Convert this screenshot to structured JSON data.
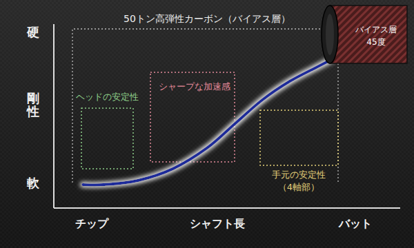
{
  "chart_data": {
    "type": "line",
    "title": "50トン高弾性カーボン（バイアス層）",
    "x_label": "シャフト長",
    "y_label": "剛性",
    "x": [
      8.4,
      14.3,
      24.3,
      34.3,
      44.2,
      52.2,
      60.2,
      68.1,
      76.1,
      80.7
    ],
    "values": [
      12.7,
      12.7,
      15,
      21.3,
      32.6,
      45.7,
      58.8,
      68.9,
      76.8,
      81.3
    ],
    "color": "#1a2a9a",
    "xlim": [
      0,
      100
    ],
    "ylim": [
      0,
      100
    ],
    "xticks": [
      {
        "value": 11,
        "label": "チップ"
      },
      {
        "value": 87,
        "label": "バット"
      }
    ],
    "yticks": [
      {
        "value": 14,
        "label": "軟"
      },
      {
        "value": 96,
        "label": "硬"
      }
    ],
    "grid": false,
    "annotations": [
      {
        "text": [
          "ヘッドの安定性"
        ],
        "color": "#8fd08a"
      },
      {
        "text": [
          "シャープな加速感"
        ],
        "color": "#e48a9a"
      },
      {
        "text": [
          "手元の安定性",
          "（4軸部）"
        ],
        "color": "#e6d27a"
      }
    ],
    "inset_labels": [
      "バイアス層",
      "45度"
    ]
  }
}
